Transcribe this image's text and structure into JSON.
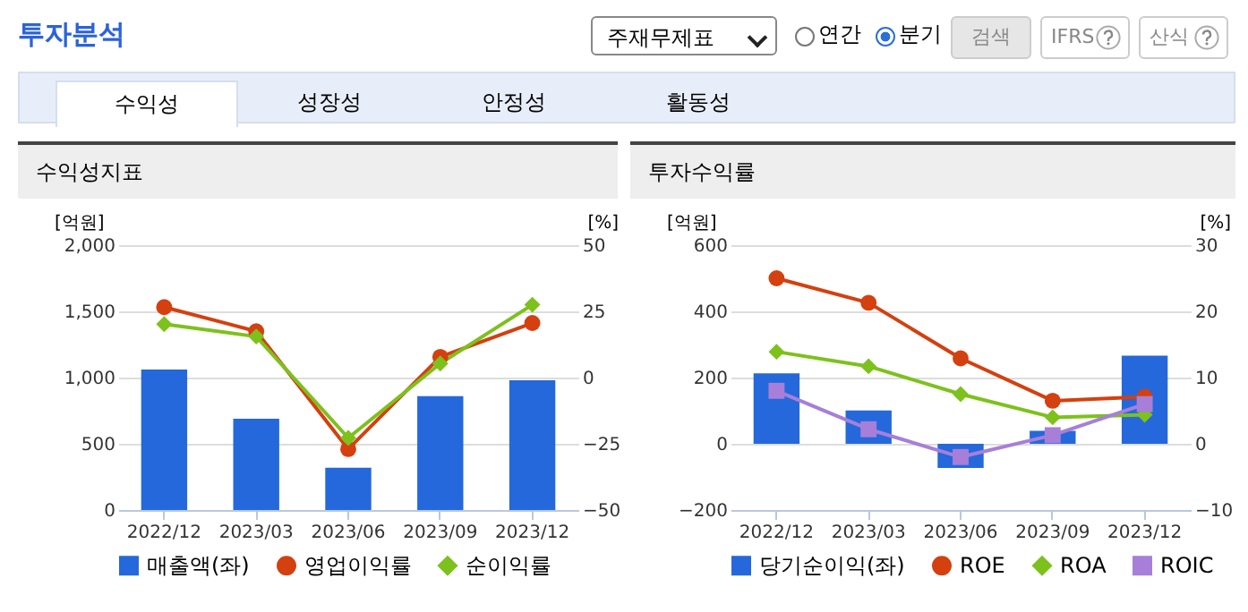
{
  "chart_data": [
    {
      "type": "other",
      "title": "투자분석",
      "annotations": [
        "주재무제표",
        "연간",
        "분기",
        "검색",
        "IFRS",
        "산식",
        "수익성",
        "성장성",
        "안정성",
        "활동성"
      ]
    },
    {
      "type": "bar",
      "title": "수익성지표",
      "ylabel": "[억원]",
      "y2label": "[%]",
      "categories": [
        "2022/12",
        "2023/03",
        "2023/06",
        "2023/09",
        "2023/12"
      ],
      "ylim": [
        0,
        2000
      ],
      "yticks": [
        0,
        {
          "value": 500,
          "label": "500"
        },
        {
          "value": 1000,
          "label": "1,000"
        },
        {
          "value": 1500,
          "label": "1,500"
        },
        {
          "value": 2000,
          "label": "2,000"
        }
      ],
      "y2lim": [
        -50,
        50
      ],
      "y2ticks": [
        -50,
        -25,
        0,
        25,
        50
      ],
      "grid": "y",
      "legend": "bottom",
      "series": [
        {
          "name": "매출액(좌)",
          "type": "bar",
          "color": "#2468dc",
          "values": [
            1060,
            690,
            320,
            860,
            980
          ]
        },
        {
          "name": "영업이익률",
          "type": "line",
          "axis": "y2",
          "marker": "circle",
          "color": "#d4400f",
          "values": [
            26.6,
            17.5,
            -27,
            7.8,
            20.6
          ]
        },
        {
          "name": "순이익률",
          "type": "line",
          "axis": "y2",
          "marker": "diamond",
          "color": "#7dc11c",
          "values": [
            20.2,
            15.5,
            -22.8,
            5.3,
            27.5
          ]
        }
      ]
    },
    {
      "type": "bar",
      "title": "투자수익률",
      "ylabel": "[억원]",
      "y2label": "[%]",
      "categories": [
        "2022/12",
        "2023/03",
        "2023/06",
        "2023/09",
        "2023/12"
      ],
      "ylim": [
        -200,
        600
      ],
      "yticks": [
        -200,
        0,
        200,
        400,
        600
      ],
      "y2lim": [
        -10,
        30
      ],
      "y2ticks": [
        -10,
        0,
        10,
        20,
        30
      ],
      "grid": "y",
      "legend": "bottom",
      "series": [
        {
          "name": "당기순이익(좌)",
          "type": "bar",
          "color": "#2468dc",
          "values": [
            213,
            101,
            -73,
            39,
            266
          ]
        },
        {
          "name": "ROE",
          "type": "line",
          "axis": "y2",
          "marker": "circle",
          "color": "#d4400f",
          "values": [
            25.0,
            21.3,
            12.9,
            6.5,
            7.1
          ]
        },
        {
          "name": "ROA",
          "type": "line",
          "axis": "y2",
          "marker": "diamond",
          "color": "#7dc11c",
          "values": [
            13.9,
            11.7,
            7.5,
            4.0,
            4.4
          ]
        },
        {
          "name": "ROIC",
          "type": "line",
          "axis": "y2",
          "marker": "square",
          "color": "#a77fd9",
          "values": [
            8.0,
            2.2,
            -2.0,
            1.3,
            6.0
          ]
        }
      ]
    }
  ]
}
